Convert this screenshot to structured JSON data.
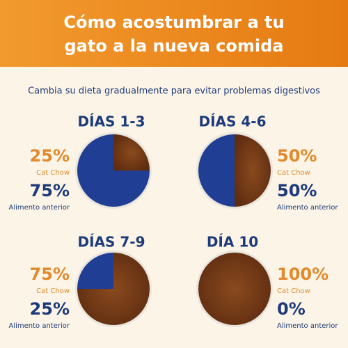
{
  "header": {
    "title_lines": [
      "Cómo acostumbrar a tu",
      "gato a la nueva comida"
    ]
  },
  "subtitle": "Cambia su dieta gradualmente para evitar problemas digestivos",
  "panels": [
    {
      "title": "DÍAS 1-3",
      "values": [
        25,
        75
      ],
      "value_labels": [
        "25%",
        "75%"
      ],
      "labels": [
        "Cat Chow",
        "Alimento anterior"
      ]
    },
    {
      "title": "DÍAS 4-6",
      "values": [
        50,
        50
      ],
      "value_labels": [
        "50%",
        "50%"
      ],
      "labels": [
        "Cat Chow",
        "Alimento anterior"
      ]
    },
    {
      "title": "DÍAS 7-9",
      "values": [
        75,
        25
      ],
      "value_labels": [
        "75%",
        "25%"
      ],
      "labels": [
        "Cat Chow",
        "Alimento anterior"
      ]
    },
    {
      "title": "DÍA 10",
      "values": [
        100,
        0
      ],
      "value_labels": [
        "100%",
        "0%"
      ],
      "labels": [
        "Cat Chow",
        "Alimento anterior"
      ]
    }
  ]
}
